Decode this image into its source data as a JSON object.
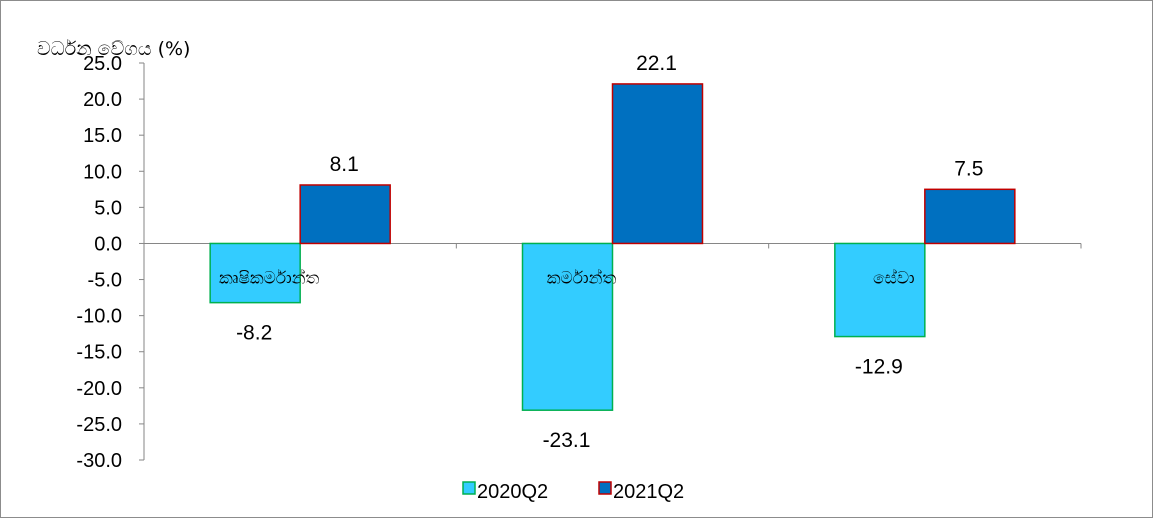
{
  "chart_data": {
    "type": "bar",
    "ylabel": "වර්ධන වේගය (%)",
    "xlabel": "",
    "categories": [
      "කෘෂිකර්මාන්ත",
      "කර්මාන්ත",
      "සේවා"
    ],
    "series": [
      {
        "name": "2020Q2",
        "values": [
          -8.2,
          -23.1,
          -12.9
        ],
        "color": "#33CCFF",
        "edge": "#00B050"
      },
      {
        "name": "2021Q2",
        "values": [
          8.1,
          22.1,
          7.5
        ],
        "color": "#0070C0",
        "edge": "#C00000"
      }
    ],
    "data_labels": [
      [
        "-8.2",
        "-23.1",
        "-12.9"
      ],
      [
        "8.1",
        "22.1",
        "7.5"
      ]
    ],
    "ylim": [
      -30,
      25
    ],
    "yticks": [
      "25.0",
      "20.0",
      "15.0",
      "10.0",
      "5.0",
      "0.0",
      "-5.0",
      "-10.0",
      "-15.0",
      "-20.0",
      "-25.0",
      "-30.0"
    ],
    "grid": false,
    "legend": "bottom-center"
  }
}
